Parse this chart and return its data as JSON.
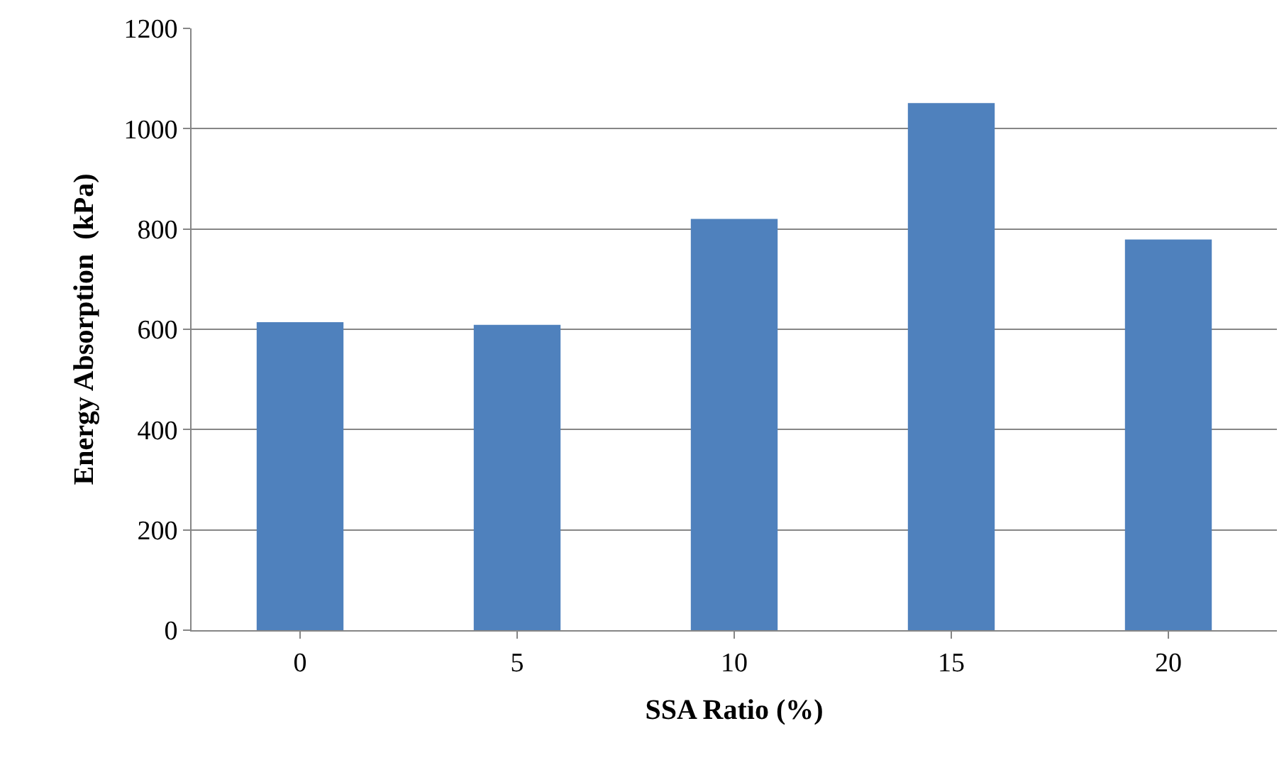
{
  "chart_data": {
    "type": "bar",
    "xlabel": "SSA Ratio (%)",
    "ylabel": "Energy Absorption  (kPa)",
    "categories": [
      "0",
      "5",
      "10",
      "15",
      "20"
    ],
    "values": [
      614,
      609,
      820,
      1051,
      779
    ],
    "color": "#4f81bd",
    "ylim": [
      0,
      1200
    ],
    "yticks": [
      0,
      200,
      400,
      600,
      800,
      1000,
      1200
    ],
    "grid": "y",
    "legend": false
  }
}
